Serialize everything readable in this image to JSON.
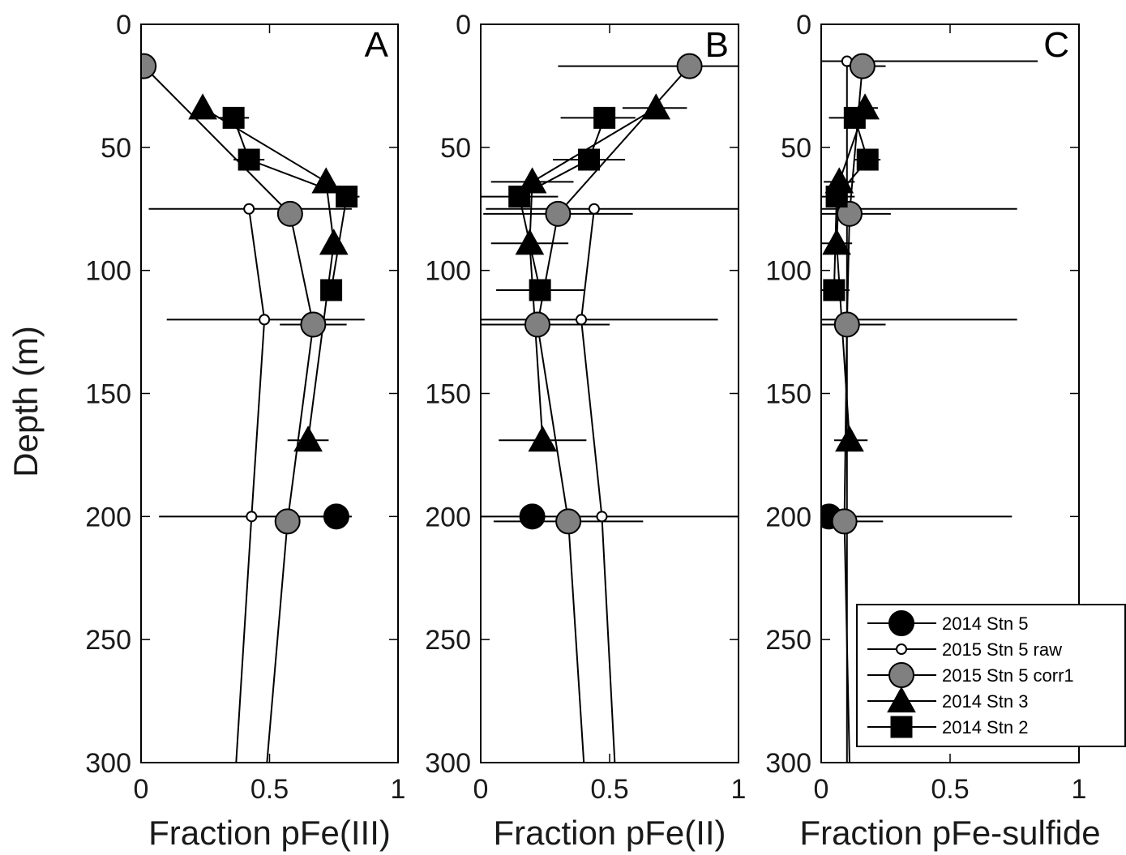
{
  "chart_data": [
    {
      "type": "scatter",
      "panel_label": "A",
      "xlabel": "Fraction pFe(III)",
      "ylabel": "Depth (m)",
      "xlim": [
        0,
        1
      ],
      "ylim": [
        300,
        0
      ],
      "xticks": [
        "0",
        "0.5",
        "1"
      ],
      "yticks": [
        "0",
        "50",
        "100",
        "150",
        "200",
        "250",
        "300"
      ],
      "series": [
        {
          "name": "2014 Stn 5",
          "marker": "circle-black",
          "connected": false,
          "points": [
            {
              "x": 0.76,
              "y": 200,
              "xerr": [
                0.7,
                0.82
              ]
            }
          ]
        },
        {
          "name": "2015 Stn 5 raw",
          "marker": "circle-open",
          "points": [
            {
              "x": 0.42,
              "y": 75,
              "xerr": [
                0.03,
                0.82
              ]
            },
            {
              "x": 0.48,
              "y": 120,
              "xerr": [
                0.1,
                0.87
              ]
            },
            {
              "x": 0.43,
              "y": 200,
              "xerr": [
                0.07,
                0.8
              ]
            },
            {
              "x": 0.37,
              "y": 300
            }
          ]
        },
        {
          "name": "2015 Stn 5 corr1",
          "marker": "circle-gray",
          "points": [
            {
              "x": 0.01,
              "y": 17
            },
            {
              "x": 0.58,
              "y": 77
            },
            {
              "x": 0.67,
              "y": 122,
              "xerr": [
                0.54,
                0.8
              ]
            },
            {
              "x": 0.57,
              "y": 202
            },
            {
              "x": 0.49,
              "y": 300
            }
          ]
        },
        {
          "name": "2014 Stn 3",
          "marker": "triangle",
          "points": [
            {
              "x": 0.24,
              "y": 34
            },
            {
              "x": 0.72,
              "y": 64
            },
            {
              "x": 0.75,
              "y": 89
            },
            {
              "x": 0.65,
              "y": 169,
              "xerr": [
                0.57,
                0.73
              ]
            }
          ]
        },
        {
          "name": "2014 Stn 2",
          "marker": "square",
          "points": [
            {
              "x": 0.36,
              "y": 38,
              "xerr": [
                0.3,
                0.42
              ]
            },
            {
              "x": 0.42,
              "y": 55,
              "xerr": [
                0.36,
                0.48
              ]
            },
            {
              "x": 0.8,
              "y": 70,
              "xerr": [
                0.76,
                0.85
              ]
            },
            {
              "x": 0.74,
              "y": 108
            }
          ]
        }
      ]
    },
    {
      "type": "scatter",
      "panel_label": "B",
      "xlabel": "Fraction pFe(II)",
      "xlim": [
        0,
        1
      ],
      "ylim": [
        300,
        0
      ],
      "xticks": [
        "0",
        "0.5",
        "1"
      ],
      "yticks": [
        "0",
        "50",
        "100",
        "150",
        "200",
        "250",
        "300"
      ],
      "series": [
        {
          "name": "2014 Stn 5",
          "marker": "circle-black",
          "connected": false,
          "points": [
            {
              "x": 0.2,
              "y": 200
            }
          ]
        },
        {
          "name": "2015 Stn 5 raw",
          "marker": "circle-open",
          "points": [
            {
              "x": 0.44,
              "y": 75,
              "xerr": [
                0.02,
                1.0
              ]
            },
            {
              "x": 0.39,
              "y": 120,
              "xerr": [
                0.0,
                0.92
              ]
            },
            {
              "x": 0.47,
              "y": 200,
              "xerr": [
                0.0,
                1.0
              ]
            },
            {
              "x": 0.52,
              "y": 300
            }
          ]
        },
        {
          "name": "2015 Stn 5 corr1",
          "marker": "circle-gray",
          "points": [
            {
              "x": 0.81,
              "y": 17,
              "xerr": [
                0.3,
                1.0
              ]
            },
            {
              "x": 0.3,
              "y": 77,
              "xerr": [
                0.01,
                0.59
              ]
            },
            {
              "x": 0.22,
              "y": 122,
              "xerr": [
                0.0,
                0.5
              ]
            },
            {
              "x": 0.34,
              "y": 202,
              "xerr": [
                0.05,
                0.63
              ]
            },
            {
              "x": 0.4,
              "y": 300
            }
          ]
        },
        {
          "name": "2014 Stn 3",
          "marker": "triangle",
          "points": [
            {
              "x": 0.68,
              "y": 34,
              "xerr": [
                0.55,
                0.8
              ]
            },
            {
              "x": 0.2,
              "y": 64,
              "xerr": [
                0.04,
                0.36
              ]
            },
            {
              "x": 0.19,
              "y": 89,
              "xerr": [
                0.04,
                0.34
              ]
            },
            {
              "x": 0.24,
              "y": 169,
              "xerr": [
                0.07,
                0.41
              ]
            }
          ]
        },
        {
          "name": "2014 Stn 2",
          "marker": "square",
          "points": [
            {
              "x": 0.48,
              "y": 38,
              "xerr": [
                0.31,
                0.6
              ]
            },
            {
              "x": 0.42,
              "y": 55,
              "xerr": [
                0.28,
                0.56
              ]
            },
            {
              "x": 0.15,
              "y": 70,
              "xerr": [
                0.0,
                0.3
              ]
            },
            {
              "x": 0.23,
              "y": 108,
              "xerr": [
                0.06,
                0.4
              ]
            }
          ]
        }
      ]
    },
    {
      "type": "scatter",
      "panel_label": "C",
      "xlabel": "Fraction pFe-sulfide",
      "xlim": [
        0,
        1
      ],
      "ylim": [
        300,
        0
      ],
      "xticks": [
        "0",
        "0.5",
        "1"
      ],
      "yticks": [
        "0",
        "50",
        "100",
        "150",
        "200",
        "250",
        "300"
      ],
      "series": [
        {
          "name": "2014 Stn 5",
          "marker": "circle-black",
          "connected": false,
          "points": [
            {
              "x": 0.03,
              "y": 200
            }
          ]
        },
        {
          "name": "2015 Stn 5 raw",
          "marker": "circle-open",
          "points": [
            {
              "x": 0.1,
              "y": 15,
              "xerr": [
                0.0,
                0.84
              ]
            },
            {
              "x": 0.1,
              "y": 75,
              "xerr": [
                0.0,
                0.76
              ]
            },
            {
              "x": 0.1,
              "y": 120,
              "xerr": [
                0.0,
                0.76
              ]
            },
            {
              "x": 0.1,
              "y": 200,
              "xerr": [
                0.0,
                0.74
              ]
            },
            {
              "x": 0.1,
              "y": 300
            }
          ]
        },
        {
          "name": "2015 Stn 5 corr1",
          "marker": "circle-gray",
          "points": [
            {
              "x": 0.16,
              "y": 17,
              "xerr": [
                0.1,
                0.25
              ]
            },
            {
              "x": 0.11,
              "y": 77,
              "xerr": [
                0.0,
                0.27
              ]
            },
            {
              "x": 0.1,
              "y": 122,
              "xerr": [
                0.0,
                0.25
              ]
            },
            {
              "x": 0.09,
              "y": 202,
              "xerr": [
                0.0,
                0.24
              ]
            },
            {
              "x": 0.11,
              "y": 300
            }
          ]
        },
        {
          "name": "2014 Stn 3",
          "marker": "triangle",
          "points": [
            {
              "x": 0.17,
              "y": 34,
              "xerr": [
                0.12,
                0.22
              ]
            },
            {
              "x": 0.07,
              "y": 64,
              "xerr": [
                0.01,
                0.13
              ]
            },
            {
              "x": 0.06,
              "y": 89,
              "xerr": [
                0.0,
                0.12
              ]
            },
            {
              "x": 0.11,
              "y": 169,
              "xerr": [
                0.05,
                0.18
              ]
            }
          ]
        },
        {
          "name": "2014 Stn 2",
          "marker": "square",
          "points": [
            {
              "x": 0.13,
              "y": 38,
              "xerr": [
                0.03,
                0.2
              ]
            },
            {
              "x": 0.18,
              "y": 55,
              "xerr": [
                0.13,
                0.23
              ]
            },
            {
              "x": 0.06,
              "y": 70,
              "xerr": [
                0.0,
                0.13
              ]
            },
            {
              "x": 0.05,
              "y": 108,
              "xerr": [
                0.0,
                0.11
              ]
            }
          ]
        }
      ]
    }
  ],
  "legend": {
    "position": "bottom-right of panel C",
    "entries": [
      {
        "label": "2014 Stn 5",
        "marker": "circle-black"
      },
      {
        "label": "2015 Stn 5 raw",
        "marker": "circle-open"
      },
      {
        "label": "2015 Stn 5 corr1",
        "marker": "circle-gray"
      },
      {
        "label": "2014 Stn 3",
        "marker": "triangle"
      },
      {
        "label": "2014 Stn 2",
        "marker": "square"
      }
    ]
  },
  "colors": {
    "black_marker": "#000000",
    "open_marker": "#ffffff",
    "gray_marker": "#808080",
    "axis": "#000000",
    "text": "#1a1a1a"
  }
}
